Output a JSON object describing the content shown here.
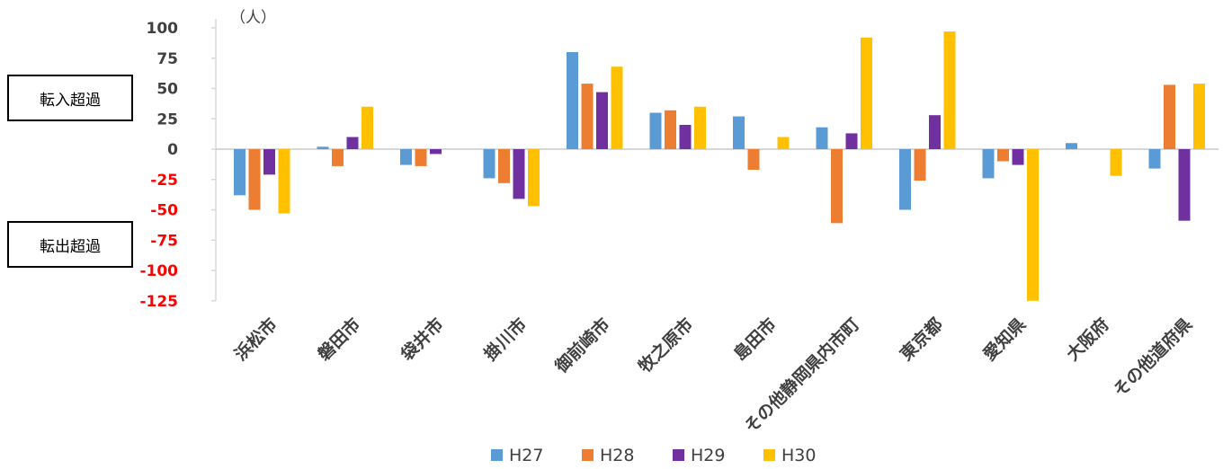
{
  "labels": {
    "transfer_in": "転入超過",
    "transfer_out": "転出超過",
    "unit": "（人）"
  },
  "chart_data": {
    "type": "bar",
    "categories": [
      "浜松市",
      "磐田市",
      "袋井市",
      "掛川市",
      "御前崎市",
      "牧之原市",
      "島田市",
      "その他静岡県内市町",
      "東京都",
      "愛知県",
      "大阪府",
      "その他道府県"
    ],
    "series": [
      {
        "name": "H27",
        "color": "#5B9BD5",
        "values": [
          -38,
          2,
          -13,
          -24,
          80,
          30,
          27,
          18,
          -50,
          -24,
          5,
          -16
        ]
      },
      {
        "name": "H28",
        "color": "#ED7D31",
        "values": [
          -50,
          -14,
          -14,
          -28,
          54,
          32,
          -17,
          -61,
          -26,
          -10,
          0,
          53
        ]
      },
      {
        "name": "H29",
        "color": "#7030A0",
        "values": [
          -21,
          10,
          -4,
          -41,
          47,
          20,
          0,
          13,
          28,
          -13,
          0,
          -59
        ]
      },
      {
        "name": "H30",
        "color": "#FFC000",
        "values": [
          -53,
          35,
          0,
          -47,
          68,
          35,
          10,
          92,
          97,
          -125,
          -22,
          54
        ]
      }
    ],
    "yticks": [
      100,
      75,
      50,
      25,
      0,
      -25,
      -50,
      -75,
      -100,
      -125
    ],
    "ylim": [
      -125,
      100
    ],
    "positive_tick_color": "#404040",
    "negative_tick_color": "#FF0000",
    "legend_position": "bottom"
  }
}
